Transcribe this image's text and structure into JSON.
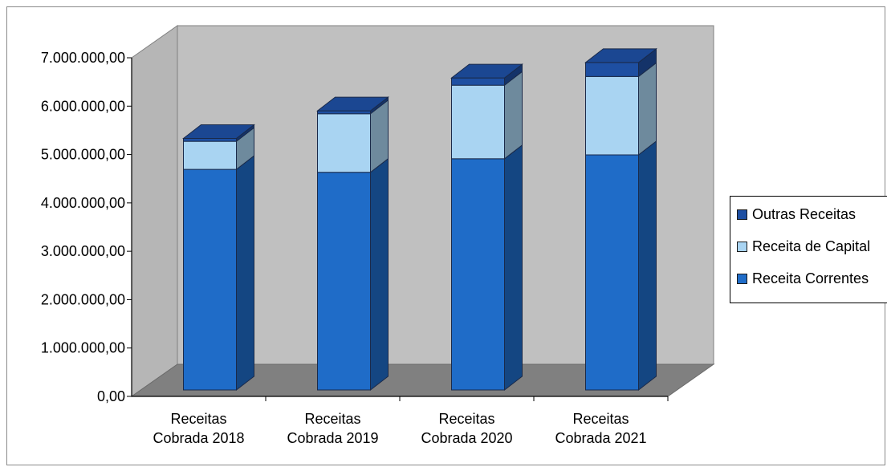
{
  "chart_data": {
    "type": "bar",
    "stacked": true,
    "three_d": true,
    "categories": [
      "Receitas Cobrada 2018",
      "Receitas Cobrada 2019",
      "Receitas Cobrada 2020",
      "Receitas Cobrada 2021"
    ],
    "category_lines": [
      [
        "Receitas",
        "Cobrada 2018"
      ],
      [
        "Receitas",
        "Cobrada 2019"
      ],
      [
        "Receitas",
        "Cobrada 2020"
      ],
      [
        "Receitas",
        "Cobrada 2021"
      ]
    ],
    "series": [
      {
        "name": "Receita Correntes",
        "values": [
          4560000,
          4500000,
          4780000,
          4860000
        ],
        "color": "#1f6cc8"
      },
      {
        "name": "Receita de Capital",
        "values": [
          580000,
          1210000,
          1520000,
          1620000
        ],
        "color": "#a9d4f2"
      },
      {
        "name": "Outras Receitas",
        "values": [
          60000,
          60000,
          150000,
          290000
        ],
        "color": "#1e4fa2"
      }
    ],
    "legend_order": [
      "Outras Receitas",
      "Receita de Capital",
      "Receita Correntes"
    ],
    "yticks": [
      "0,00",
      "1.000.000,00",
      "2.000.000,00",
      "3.000.000,00",
      "4.000.000,00",
      "5.000.000,00",
      "6.000.000,00",
      "7.000.000,00"
    ],
    "ylim": [
      0,
      7000000
    ],
    "title": "",
    "xlabel": "",
    "ylabel": "",
    "grid": false,
    "legend_position": "right",
    "wall_color": "#c0c0c0",
    "floor_color": "#808080"
  }
}
